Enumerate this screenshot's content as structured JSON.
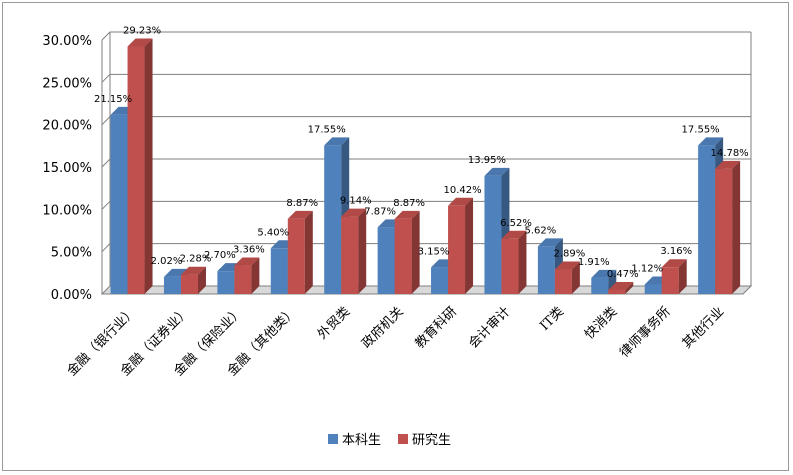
{
  "chart_data": {
    "type": "bar",
    "style": "3d-clustered-column",
    "categories": [
      "金融（银行业）",
      "金融（证券业）",
      "金融（保险业）",
      "金融（其他类）",
      "外贸类",
      "政府机关",
      "教育科研",
      "会计审计",
      "IT类",
      "快消类",
      "律师事务所",
      "其他行业"
    ],
    "series": [
      {
        "name": "本科生",
        "color": "#4f81bd",
        "values": [
          21.15,
          2.02,
          2.7,
          5.4,
          17.55,
          7.87,
          3.15,
          13.95,
          5.62,
          1.91,
          1.12,
          17.55
        ],
        "labels": [
          "21.15%",
          "2.02%",
          "2.70%",
          "5.40%",
          "17.55%",
          "7.87%",
          "3.15%",
          "13.95%",
          "5.62%",
          "1.91%",
          "1.12%",
          "17.55%"
        ]
      },
      {
        "name": "研究生",
        "color": "#c0504d",
        "values": [
          29.23,
          2.28,
          3.36,
          8.87,
          9.14,
          8.87,
          10.42,
          6.52,
          2.89,
          0.47,
          3.16,
          14.78
        ],
        "labels": [
          "29.23%",
          "2.28%",
          "3.36%",
          "8.87%",
          "9.14%",
          "8.87%",
          "10.42%",
          "6.52%",
          "2.89%",
          "0.47%",
          "3.16%",
          "14.78%"
        ]
      }
    ],
    "y_ticks": [
      "0.00%",
      "5.00%",
      "10.00%",
      "15.00%",
      "20.00%",
      "25.00%",
      "30.00%"
    ],
    "ylim": [
      0,
      30
    ],
    "title": "",
    "xlabel": "",
    "ylabel": "",
    "grid": true,
    "legend_position": "bottom"
  }
}
